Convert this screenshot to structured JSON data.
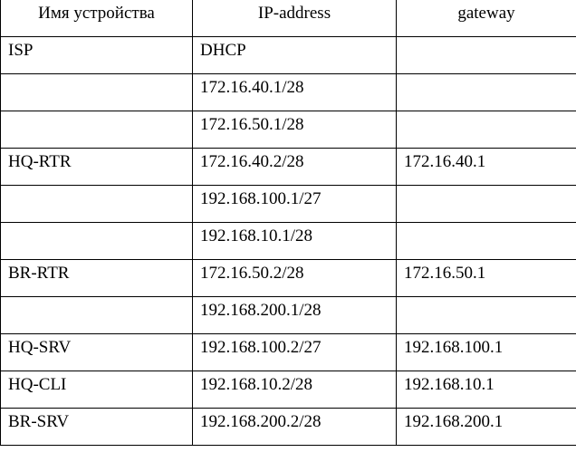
{
  "headers": [
    "Имя устройства",
    "IP-address",
    "gateway"
  ],
  "rows": [
    [
      "ISP",
      "DHCP",
      ""
    ],
    [
      "",
      "172.16.40.1/28",
      ""
    ],
    [
      "",
      "172.16.50.1/28",
      ""
    ],
    [
      "HQ-RTR",
      "172.16.40.2/28",
      "172.16.40.1"
    ],
    [
      "",
      "192.168.100.1/27",
      ""
    ],
    [
      "",
      "192.168.10.1/28",
      ""
    ],
    [
      "BR-RTR",
      "172.16.50.2/28",
      "172.16.50.1"
    ],
    [
      "",
      "192.168.200.1/28",
      ""
    ],
    [
      "HQ-SRV",
      "192.168.100.2/27",
      "192.168.100.1"
    ],
    [
      "HQ-CLI",
      "192.168.10.2/28",
      "192.168.10.1"
    ],
    [
      "BR-SRV",
      "192.168.200.2/28",
      "192.168.200.1"
    ]
  ]
}
